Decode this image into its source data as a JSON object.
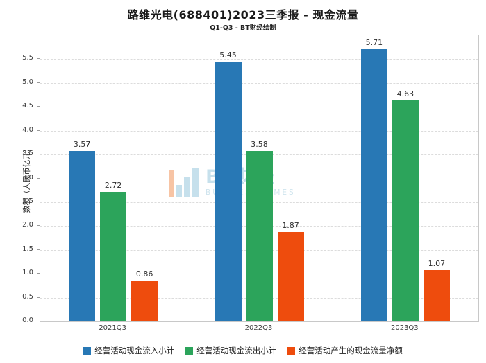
{
  "header": {
    "title": "路维光电(688401)2023三季报 - 现金流量",
    "subtitle": "Q1-Q3 - BT财经绘制"
  },
  "watermark": {
    "brand": "BT财经",
    "brand_sub": "BUSINESS TIMES"
  },
  "chart_data": {
    "type": "bar",
    "title": "路维光电(688401)2023三季报 - 现金流量",
    "subtitle": "Q1-Q3 - BT财经绘制",
    "categories": [
      "2021Q3",
      "2022Q3",
      "2023Q3"
    ],
    "series": [
      {
        "name": "经营活动现金流入小计",
        "color": "#2878b5",
        "values": [
          3.57,
          5.45,
          5.71
        ]
      },
      {
        "name": "经营活动现金流出小计",
        "color": "#2ca45b",
        "values": [
          2.72,
          3.58,
          4.63
        ]
      },
      {
        "name": "经营活动产生的现金流量净额",
        "color": "#ee4c0d",
        "values": [
          0.86,
          1.87,
          1.07
        ]
      }
    ],
    "xlabel": "",
    "ylabel": "数额（人民币亿元）",
    "ylim": [
      0,
      6.0
    ],
    "yticks": [
      0.0,
      0.5,
      1.0,
      1.5,
      2.0,
      2.5,
      3.0,
      3.5,
      4.0,
      4.5,
      5.0,
      5.5
    ],
    "grid": true,
    "legend_position": "bottom"
  }
}
